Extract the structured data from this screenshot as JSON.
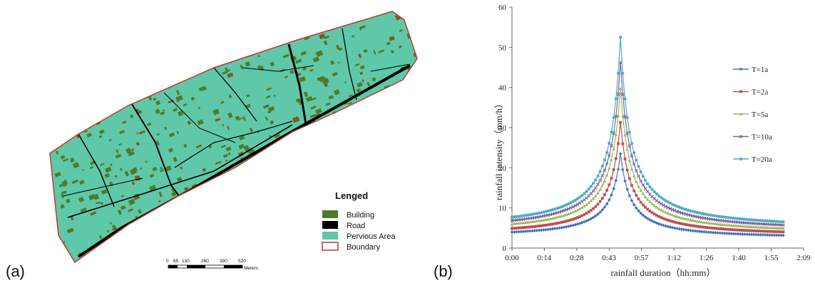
{
  "map_panel": {
    "panel_label": "(a)",
    "legend": {
      "title": "Lenged",
      "items": [
        {
          "label": "Building",
          "color": "#4f7a2e"
        },
        {
          "label": "Road",
          "color": "#000000"
        },
        {
          "label": "Pervious Area",
          "color": "#5fc8a8"
        },
        {
          "label": "Boundary",
          "color": "#c0392b"
        }
      ]
    },
    "scale_bar": {
      "ticks": [
        "0",
        "65",
        "130",
        "260",
        "390",
        "520"
      ],
      "unit": "Meters"
    },
    "colors": {
      "pervious": "#5fc8a8",
      "building": "#4f7a2e",
      "building_dark": "#7a5a2a",
      "road": "#000000",
      "boundary": "#c0392b"
    }
  },
  "chart_panel": {
    "panel_label": "(b)"
  },
  "chart_data": {
    "type": "line",
    "xlabel": "rainfall duration（hh:mm）",
    "ylabel": "rainfall intensity（mm/h）",
    "xlim": [
      0,
      129
    ],
    "ylim": [
      0,
      60
    ],
    "x_tick_labels": [
      "0:00",
      "0:14",
      "0:28",
      "0:43",
      "0:57",
      "1:12",
      "1:26",
      "1:40",
      "1:55",
      "2:09"
    ],
    "y_tick_labels": [
      "0",
      "10",
      "20",
      "30",
      "40",
      "50",
      "60"
    ],
    "peak_minute": 48,
    "end_minute": 120,
    "legend_position": "right",
    "series": [
      {
        "name": "T=1a",
        "color": "#4472c4",
        "marker": "diamond",
        "peak": 23.5,
        "start": 2.8,
        "end": 2.4
      },
      {
        "name": "T=2a",
        "color": "#c0504d",
        "marker": "square",
        "peak": 31.3,
        "start": 3.3,
        "end": 3.0
      },
      {
        "name": "T=5a",
        "color": "#9bbb59",
        "marker": "triangle",
        "peak": 39.7,
        "start": 4.0,
        "end": 3.6
      },
      {
        "name": "T=10a",
        "color": "#8064a2",
        "marker": "x",
        "peak": 46.2,
        "start": 4.5,
        "end": 4.2
      },
      {
        "name": "T=20a",
        "color": "#4bacc6",
        "marker": "circle",
        "peak": 52.5,
        "start": 5.0,
        "end": 4.8
      }
    ]
  }
}
